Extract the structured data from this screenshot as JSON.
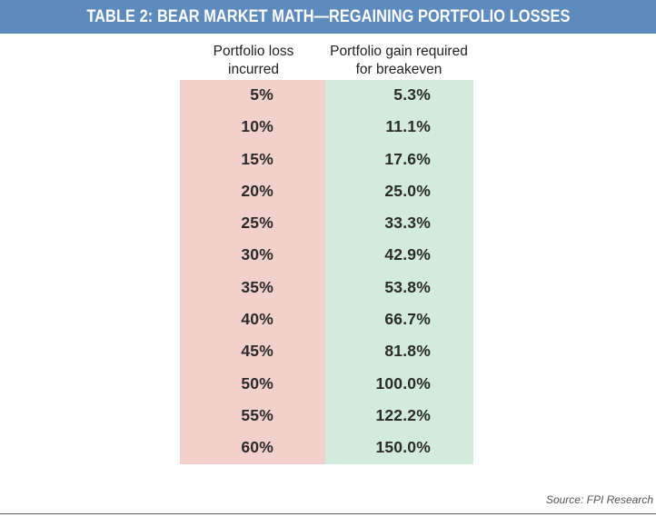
{
  "chart_data": {
    "type": "table",
    "title": "TABLE 2: BEAR MARKET MATH—REGAINING PORTFOLIO LOSSES",
    "columns": [
      [
        "Portfolio loss",
        "incurred"
      ],
      [
        "Portfolio gain required",
        "for breakeven"
      ]
    ],
    "rows": [
      [
        "5%",
        "5.3%"
      ],
      [
        "10%",
        "11.1%"
      ],
      [
        "15%",
        "17.6%"
      ],
      [
        "20%",
        "25.0%"
      ],
      [
        "25%",
        "33.3%"
      ],
      [
        "30%",
        "42.9%"
      ],
      [
        "35%",
        "53.8%"
      ],
      [
        "40%",
        "66.7%"
      ],
      [
        "45%",
        "81.8%"
      ],
      [
        "50%",
        "100.0%"
      ],
      [
        "55%",
        "122.2%"
      ],
      [
        "60%",
        "150.0%"
      ]
    ],
    "source": "Source: FPI Research"
  },
  "colors": {
    "title_bar": "#5e8bbd",
    "loss_column": "#f2d0cc",
    "gain_column": "#d3ebdc"
  }
}
